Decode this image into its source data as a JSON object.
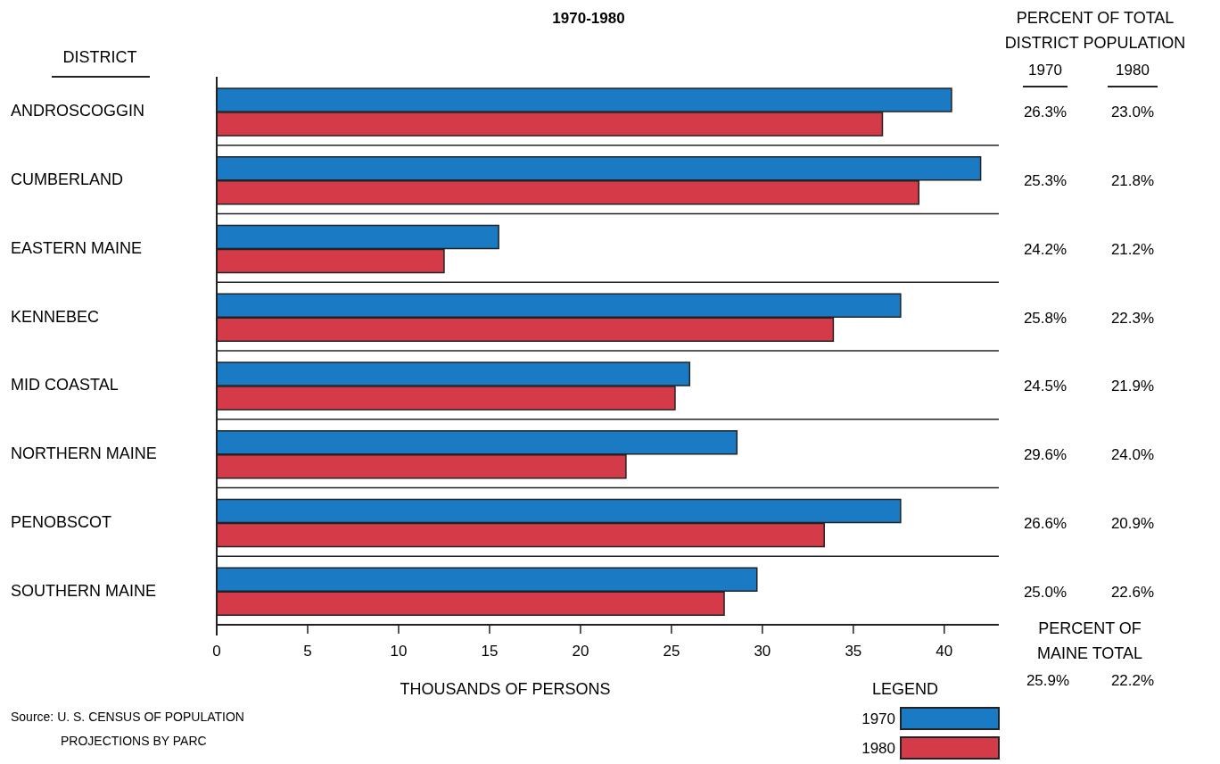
{
  "chart_data": {
    "type": "bar",
    "orientation": "horizontal",
    "title": "1970-1980",
    "ylabel": "DISTRICT",
    "xlabel": "THOUSANDS OF PERSONS",
    "legend_title": "LEGEND",
    "legend": "bottom right",
    "categories": [
      "ANDROSCOGGIN",
      "CUMBERLAND",
      "EASTERN MAINE",
      "KENNEBEC",
      "MID COASTAL",
      "NORTHERN MAINE",
      "PENOBSCOT",
      "SOUTHERN MAINE"
    ],
    "series": [
      {
        "name": "1970",
        "color": "#1a7bc4",
        "values": [
          40.4,
          42.0,
          15.5,
          37.6,
          26.0,
          28.6,
          37.6,
          29.7
        ]
      },
      {
        "name": "1980",
        "color": "#d43a48",
        "values": [
          36.6,
          38.6,
          12.5,
          33.9,
          25.2,
          22.5,
          33.4,
          27.9
        ]
      }
    ],
    "xlim": [
      0,
      43
    ],
    "xticks": [
      0,
      5,
      10,
      15,
      20,
      25,
      30,
      35,
      40
    ],
    "annotations": [
      "PERCENT OF TOTAL",
      "DISTRICT POPULATION",
      "1970",
      "1980",
      "26.3%",
      "23.0%",
      "25.3%",
      "21.8%",
      "24.2%",
      "21.2%",
      "25.8%",
      "22.3%",
      "24.5%",
      "21.9%",
      "29.6%",
      "24.0%",
      "26.6%",
      "20.9%",
      "25.0%",
      "22.6%",
      "PERCENT OF",
      "MAINE TOTAL",
      "25.9%",
      "22.2%",
      "Source: U. S. CENSUS OF POPULATION",
      "PROJECTIONS BY PARC"
    ]
  }
}
